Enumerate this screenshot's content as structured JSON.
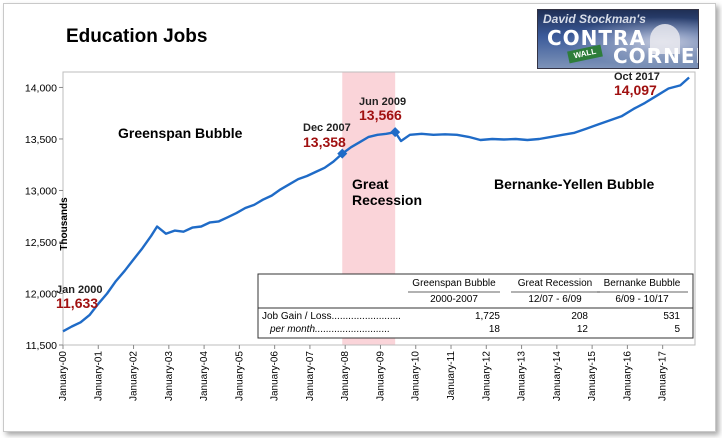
{
  "title": "Education Jobs",
  "logo": {
    "line1": "David Stockman's",
    "line2": "CONTRA",
    "line3": "CORNER",
    "sign": "WALL"
  },
  "colors": {
    "line": "#1f6bc7",
    "recession_band": "#f9c9cf",
    "value_text": "#a01010"
  },
  "chart_data": {
    "type": "line",
    "title": "Education Jobs",
    "ylabel": "Thousands",
    "xlabel": "",
    "ylim": [
      11500,
      14150
    ],
    "yticks": [
      11500,
      12000,
      12500,
      13000,
      13500,
      14000
    ],
    "ytick_labels": [
      "11,500",
      "12,000",
      "12,500",
      "13,000",
      "13,500",
      "14,000"
    ],
    "xtick_labels": [
      "January-00",
      "January-01",
      "January-02",
      "January-03",
      "January-04",
      "January-05",
      "January-06",
      "January-07",
      "January-08",
      "January-09",
      "January-10",
      "January-11",
      "January-12",
      "January-13",
      "January-14",
      "January-15",
      "January-16",
      "January-17"
    ],
    "grid": false,
    "recession_shading": {
      "start": "2007-12",
      "end": "2009-06"
    },
    "series": [
      {
        "name": "",
        "points": [
          [
            "2000-01",
            11633
          ],
          [
            "2000-04",
            11680
          ],
          [
            "2000-07",
            11720
          ],
          [
            "2000-10",
            11790
          ],
          [
            "2001-01",
            11900
          ],
          [
            "2001-04",
            12000
          ],
          [
            "2001-07",
            12120
          ],
          [
            "2001-10",
            12220
          ],
          [
            "2002-01",
            12330
          ],
          [
            "2002-04",
            12440
          ],
          [
            "2002-07",
            12560
          ],
          [
            "2002-09",
            12650
          ],
          [
            "2002-12",
            12580
          ],
          [
            "2003-03",
            12610
          ],
          [
            "2003-06",
            12600
          ],
          [
            "2003-09",
            12640
          ],
          [
            "2003-12",
            12650
          ],
          [
            "2004-03",
            12690
          ],
          [
            "2004-06",
            12700
          ],
          [
            "2004-09",
            12740
          ],
          [
            "2004-12",
            12780
          ],
          [
            "2005-03",
            12830
          ],
          [
            "2005-06",
            12860
          ],
          [
            "2005-09",
            12910
          ],
          [
            "2005-12",
            12950
          ],
          [
            "2006-03",
            13010
          ],
          [
            "2006-06",
            13060
          ],
          [
            "2006-09",
            13110
          ],
          [
            "2006-12",
            13140
          ],
          [
            "2007-03",
            13180
          ],
          [
            "2007-06",
            13220
          ],
          [
            "2007-09",
            13280
          ],
          [
            "2007-12",
            13358
          ],
          [
            "2008-03",
            13420
          ],
          [
            "2008-06",
            13470
          ],
          [
            "2008-09",
            13520
          ],
          [
            "2008-12",
            13540
          ],
          [
            "2009-03",
            13550
          ],
          [
            "2009-06",
            13566
          ],
          [
            "2009-08",
            13480
          ],
          [
            "2009-11",
            13540
          ],
          [
            "2010-03",
            13550
          ],
          [
            "2010-07",
            13540
          ],
          [
            "2010-11",
            13545
          ],
          [
            "2011-03",
            13540
          ],
          [
            "2011-07",
            13520
          ],
          [
            "2011-11",
            13490
          ],
          [
            "2012-03",
            13500
          ],
          [
            "2012-07",
            13495
          ],
          [
            "2012-11",
            13500
          ],
          [
            "2013-03",
            13490
          ],
          [
            "2013-07",
            13500
          ],
          [
            "2013-11",
            13520
          ],
          [
            "2014-03",
            13540
          ],
          [
            "2014-07",
            13560
          ],
          [
            "2014-11",
            13600
          ],
          [
            "2015-03",
            13640
          ],
          [
            "2015-07",
            13680
          ],
          [
            "2015-11",
            13720
          ],
          [
            "2016-03",
            13790
          ],
          [
            "2016-07",
            13850
          ],
          [
            "2016-11",
            13920
          ],
          [
            "2017-03",
            13990
          ],
          [
            "2017-07",
            14020
          ],
          [
            "2017-10",
            14097
          ]
        ]
      }
    ],
    "annotations": [
      {
        "label": "Jan 2000",
        "value": "11,633",
        "date": "2000-01",
        "y": 11633
      },
      {
        "label": "Dec 2007",
        "value": "13,358",
        "date": "2007-12",
        "y": 13358
      },
      {
        "label": "Jun 2009",
        "value": "13,566",
        "date": "2009-06",
        "y": 13566
      },
      {
        "label": "Oct 2017",
        "value": "14,097",
        "date": "2017-10",
        "y": 14097
      }
    ],
    "region_labels": {
      "greenspan": "Greenspan Bubble",
      "recession_line1": "Great",
      "recession_line2": "Recession",
      "bernanke": "Bernanke-Yellen Bubble"
    }
  },
  "table": {
    "columns": [
      {
        "name": "Greenspan Bubble",
        "period": "2000-2007"
      },
      {
        "name": "Great Recession",
        "period": "12/07 - 6/09"
      },
      {
        "name": "Bernanke Bubble",
        "period": "6/09 - 10/17"
      }
    ],
    "rows": [
      {
        "label": "Job Gain / Loss.........................",
        "values": [
          "1,725",
          "208",
          "531"
        ]
      },
      {
        "label": "per month...........................",
        "values": [
          "18",
          "12",
          "5"
        ]
      }
    ]
  }
}
